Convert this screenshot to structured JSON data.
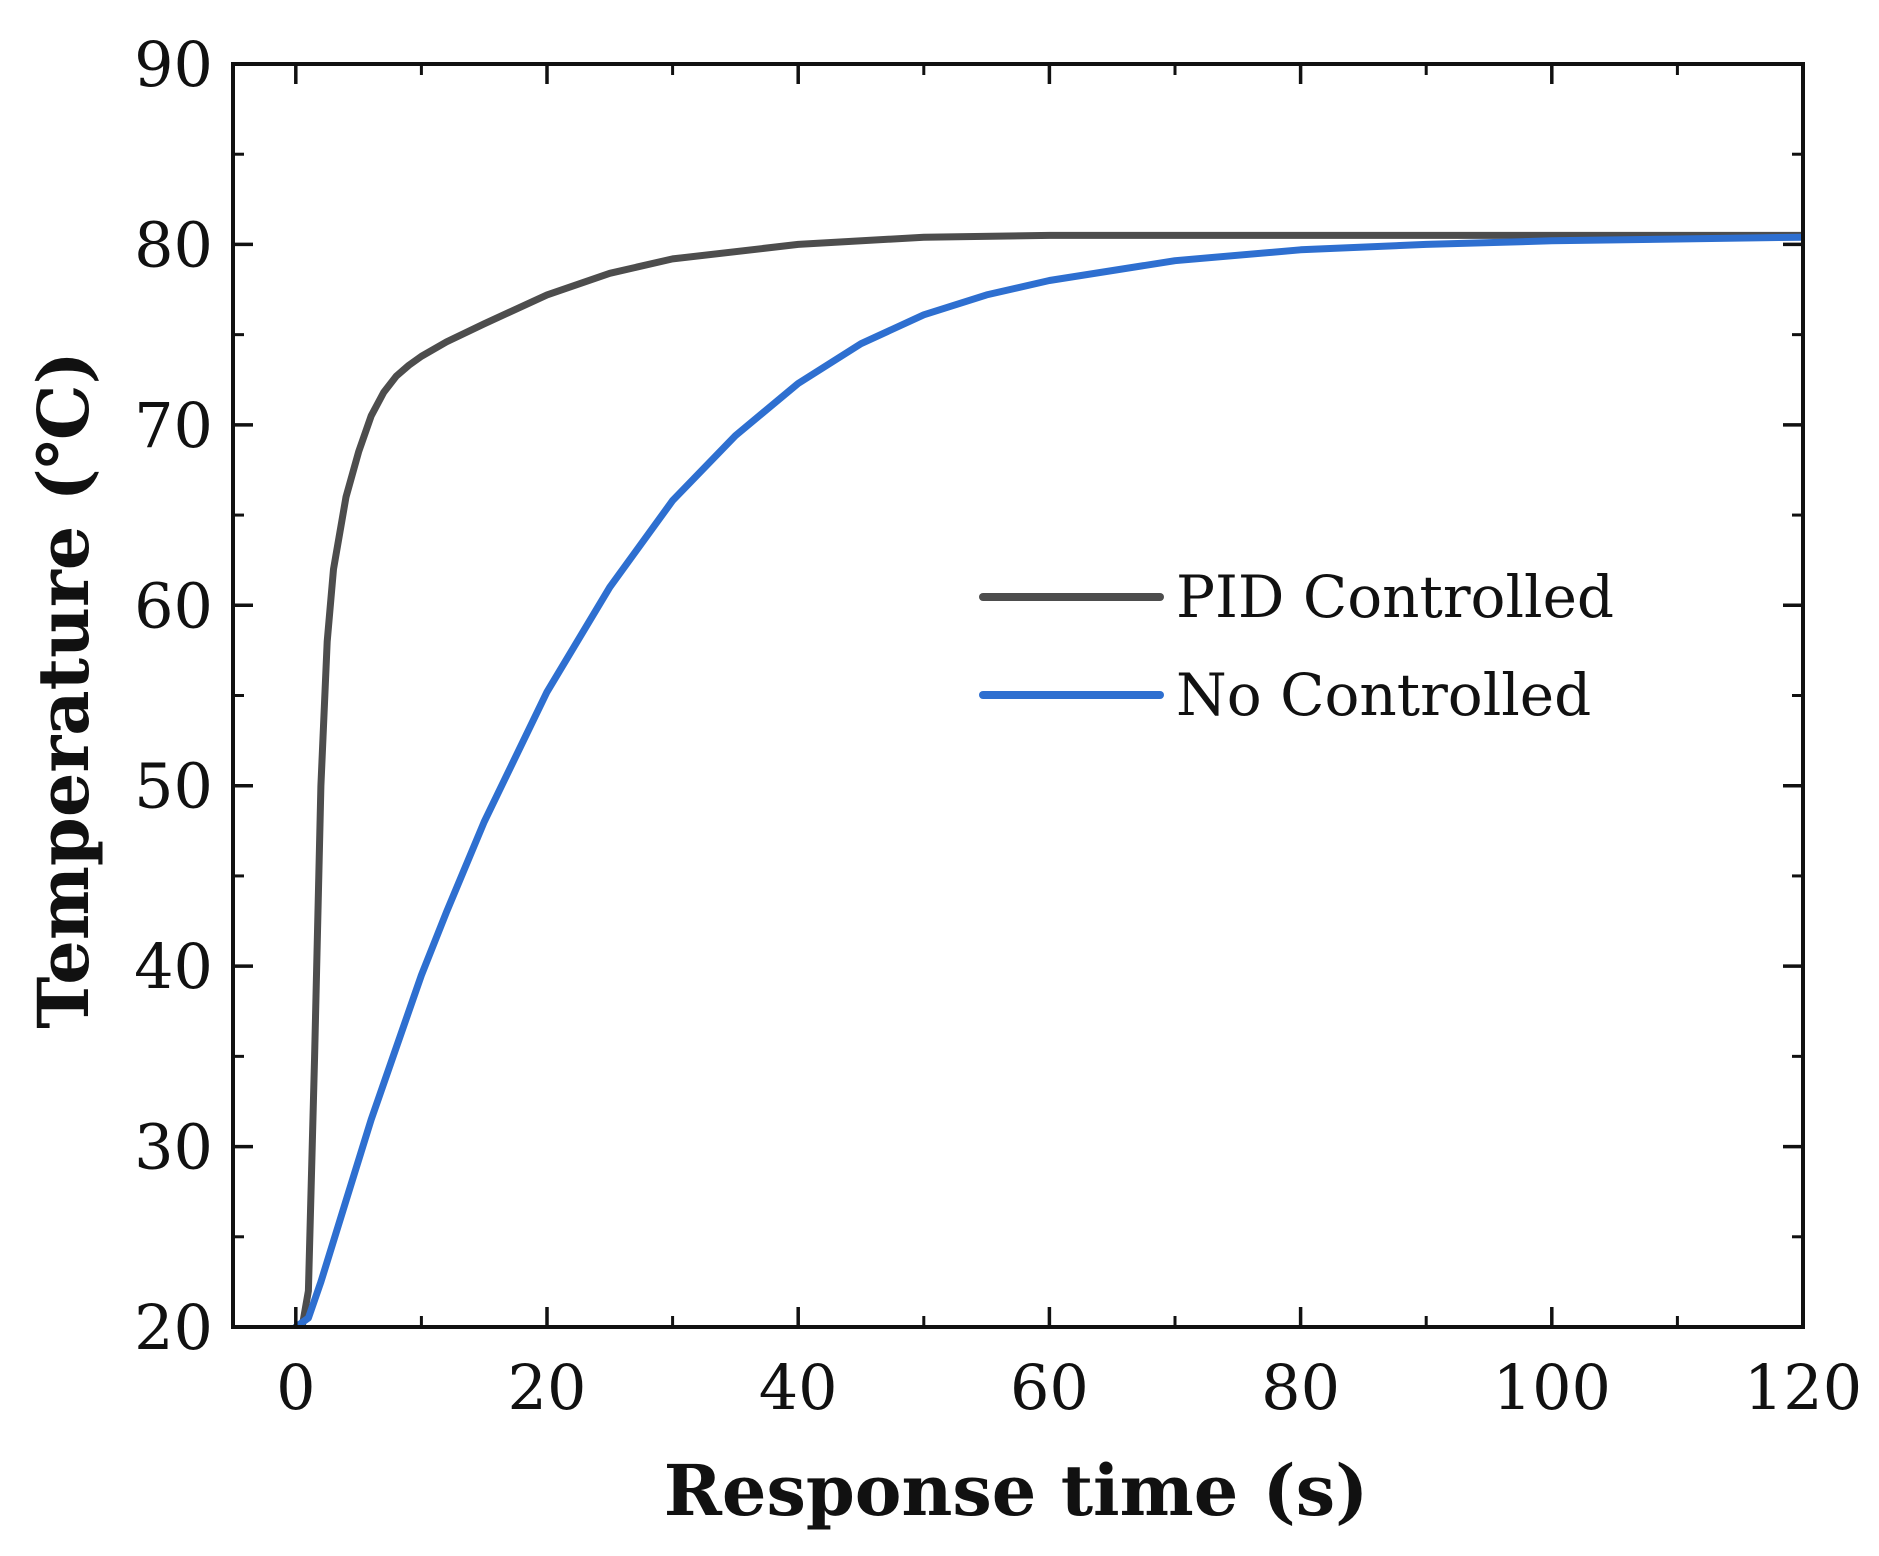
{
  "chart_data": {
    "type": "line",
    "title": "",
    "xlabel": "Response time (s)",
    "ylabel": "Temperature (℃)",
    "xlim": [
      -5,
      120
    ],
    "ylim": [
      20,
      90
    ],
    "xticks": [
      0,
      20,
      40,
      60,
      80,
      100,
      120
    ],
    "yticks": [
      20,
      30,
      40,
      50,
      60,
      70,
      80,
      90
    ],
    "x_minor_step": 10,
    "y_minor_step": 5,
    "grid": false,
    "legend_position": "right-center",
    "series": [
      {
        "name": "PID Controlled",
        "color": "#4d4d4d",
        "x": [
          0,
          0.5,
          1,
          1.5,
          2,
          2.5,
          3,
          4,
          5,
          6,
          7,
          8,
          9,
          10,
          12,
          15,
          20,
          25,
          30,
          40,
          50,
          60,
          80,
          100,
          120
        ],
        "y": [
          20,
          20,
          22,
          35,
          50,
          58,
          62,
          66,
          68.5,
          70.5,
          71.8,
          72.7,
          73.3,
          73.8,
          74.6,
          75.6,
          77.2,
          78.4,
          79.2,
          80.0,
          80.4,
          80.5,
          80.5,
          80.5,
          80.5
        ]
      },
      {
        "name": "No Controlled",
        "color": "#2e6fd0",
        "x": [
          0,
          1,
          2,
          4,
          6,
          8,
          10,
          12,
          15,
          20,
          25,
          30,
          35,
          40,
          45,
          50,
          55,
          60,
          70,
          80,
          90,
          100,
          110,
          120
        ],
        "y": [
          20,
          20.5,
          22.5,
          27,
          31.5,
          35.5,
          39.5,
          43,
          48,
          55.2,
          61,
          65.8,
          69.4,
          72.3,
          74.5,
          76.1,
          77.2,
          78.0,
          79.1,
          79.7,
          80.0,
          80.2,
          80.3,
          80.4
        ]
      }
    ]
  }
}
